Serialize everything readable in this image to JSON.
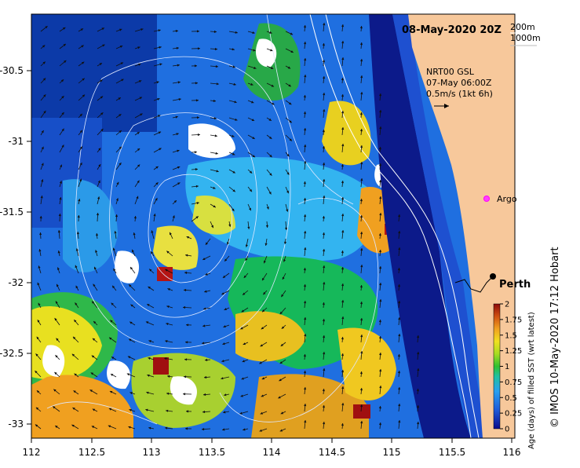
{
  "map": {
    "date_title": "08-May-2020 20Z",
    "iso_legend": [
      "200m",
      "1000m"
    ],
    "current_label": [
      "NRT00 GSL",
      "07-May 06:00Z",
      "0.5m/s (1kt 6h)"
    ],
    "place_labels": {
      "argo": "Argo",
      "perth": "Perth"
    },
    "credit": "© IMOS 10-May-2020 17:12 Hobart",
    "colorbar_label": "Age (days) of filled SST (wrt latest)",
    "x_ticks": [
      "112",
      "112.5",
      "113",
      "113.5",
      "114",
      "114.5",
      "115",
      "115.5",
      "116"
    ],
    "y_ticks": [
      "-30.5",
      "-31",
      "-31.5",
      "-32",
      "-32.5",
      "-33"
    ],
    "colorbar_ticks": [
      "2",
      "1.75",
      "1.5",
      "1.25",
      "1",
      "0.75",
      "0.5",
      "0.25",
      "0"
    ],
    "colors": {
      "land": "#f7c89b",
      "deep": "#0c1a8a",
      "blue": "#1f6fe0",
      "cyan": "#33b4f0",
      "green": "#16b85a",
      "yellow": "#e8e020",
      "orange": "#f0a020",
      "red": "#b41414"
    }
  }
}
